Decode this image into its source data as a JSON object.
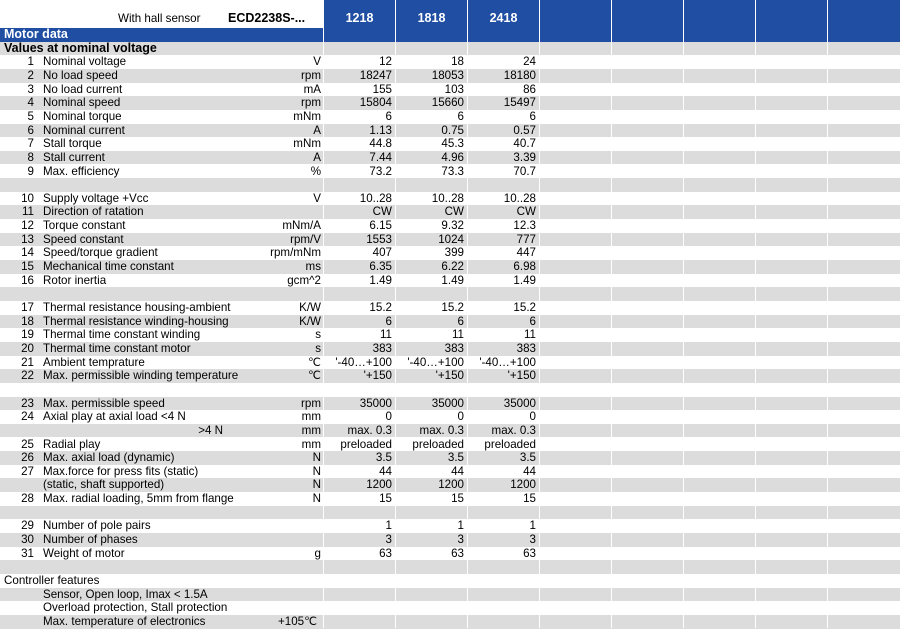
{
  "header": {
    "hall_label": "With hall sensor",
    "model_label": "ECD2238S-...",
    "columns": [
      "1218",
      "1818",
      "2418"
    ],
    "color": "#1f4ea3"
  },
  "motor_data_title": "Motor data",
  "nominal_title": "Values at nominal voltage",
  "rows": [
    {
      "num": "1",
      "desc": "Nominal voltage",
      "unit": "V",
      "v": [
        "12",
        "18",
        "24"
      ]
    },
    {
      "num": "2",
      "desc": "No load speed",
      "unit": "rpm",
      "v": [
        "18247",
        "18053",
        "18180"
      ]
    },
    {
      "num": "3",
      "desc": "No load current",
      "unit": "mA",
      "v": [
        "155",
        "103",
        "86"
      ]
    },
    {
      "num": "4",
      "desc": "Nominal speed",
      "unit": "rpm",
      "v": [
        "15804",
        "15660",
        "15497"
      ]
    },
    {
      "num": "5",
      "desc": "Nominal torque",
      "unit": "mNm",
      "v": [
        "6",
        "6",
        "6"
      ]
    },
    {
      "num": "6",
      "desc": "Nominal current",
      "unit": "A",
      "v": [
        "1.13",
        "0.75",
        "0.57"
      ]
    },
    {
      "num": "7",
      "desc": "Stall torque",
      "unit": "mNm",
      "v": [
        "44.8",
        "45.3",
        "40.7"
      ]
    },
    {
      "num": "8",
      "desc": "Stall current",
      "unit": "A",
      "v": [
        "7.44",
        "4.96",
        "3.39"
      ]
    },
    {
      "num": "9",
      "desc": "Max. efficiency",
      "unit": "%",
      "v": [
        "73.2",
        "73.3",
        "70.7"
      ]
    },
    {
      "blank": true
    },
    {
      "num": "10",
      "desc": "Supply voltage +Vcc",
      "unit": "V",
      "v": [
        "10..28",
        "10..28",
        "10..28"
      ]
    },
    {
      "num": "11",
      "desc": "Direction of ratation",
      "unit": "",
      "v": [
        "CW",
        "CW",
        "CW"
      ]
    },
    {
      "num": "12",
      "desc": "Torque constant",
      "unit": "mNm/A",
      "v": [
        "6.15",
        "9.32",
        "12.3"
      ]
    },
    {
      "num": "13",
      "desc": "Speed constant",
      "unit": "rpm/V",
      "v": [
        "1553",
        "1024",
        "777"
      ]
    },
    {
      "num": "14",
      "desc": "Speed/torque gradient",
      "unit": "rpm/mNm",
      "v": [
        "407",
        "399",
        "447"
      ]
    },
    {
      "num": "15",
      "desc": "Mechanical time constant",
      "unit": "ms",
      "v": [
        "6.35",
        "6.22",
        "6.98"
      ]
    },
    {
      "num": "16",
      "desc": "Rotor inertia",
      "unit": "gcm^2",
      "v": [
        "1.49",
        "1.49",
        "1.49"
      ]
    },
    {
      "blank": true
    },
    {
      "num": "17",
      "desc": "Thermal resistance housing-ambient",
      "unit": "K/W",
      "v": [
        "15.2",
        "15.2",
        "15.2"
      ]
    },
    {
      "num": "18",
      "desc": "Thermal resistance winding-housing",
      "unit": "K/W",
      "v": [
        "6",
        "6",
        "6"
      ]
    },
    {
      "num": "19",
      "desc": "Thermal time constant winding",
      "unit": "s",
      "v": [
        "11",
        "11",
        "11"
      ]
    },
    {
      "num": "20",
      "desc": "Thermal time constant motor",
      "unit": "s",
      "v": [
        "383",
        "383",
        "383"
      ]
    },
    {
      "num": "21",
      "desc": "Ambient temprature",
      "unit": "℃",
      "v": [
        "'-40…+100",
        "'-40…+100",
        "'-40…+100"
      ]
    },
    {
      "num": "22",
      "desc": "Max. permissible winding temperature",
      "unit": "℃",
      "v": [
        "'+150",
        "'+150",
        "'+150"
      ]
    },
    {
      "blank": true
    },
    {
      "num": "23",
      "desc": "Max. permissible speed",
      "unit": "rpm",
      "v": [
        "35000",
        "35000",
        "35000"
      ]
    },
    {
      "num": "24",
      "desc": "Axial play at axial load <4 N",
      "unit": "mm",
      "v": [
        "0",
        "0",
        "0"
      ]
    },
    {
      "num": "",
      "desc": ">4 N",
      "indent": true,
      "unit": "mm",
      "v": [
        "max. 0.3",
        "max. 0.3",
        "max. 0.3"
      ]
    },
    {
      "num": "25",
      "desc": "Radial play",
      "unit": "mm",
      "v": [
        "preloaded",
        "preloaded",
        "preloaded"
      ]
    },
    {
      "num": "26",
      "desc": "Max. axial load (dynamic)",
      "unit": "N",
      "v": [
        "3.5",
        "3.5",
        "3.5"
      ]
    },
    {
      "num": "27",
      "desc": "Max.force for press fits (static)",
      "unit": "N",
      "v": [
        "44",
        "44",
        "44"
      ]
    },
    {
      "num": "",
      "desc": "(static, shaft supported)",
      "unit": "N",
      "v": [
        "1200",
        "1200",
        "1200"
      ]
    },
    {
      "num": "28",
      "desc": "Max. radial loading, 5mm from flange",
      "unit": "N",
      "v": [
        "15",
        "15",
        "15"
      ]
    },
    {
      "blank": true
    },
    {
      "num": "29",
      "desc": "Number of pole pairs",
      "unit": "",
      "v": [
        "1",
        "1",
        "1"
      ]
    },
    {
      "num": "30",
      "desc": "Number of phases",
      "unit": "",
      "v": [
        "3",
        "3",
        "3"
      ]
    },
    {
      "num": "31",
      "desc": "Weight of motor",
      "unit": "g",
      "v": [
        "63",
        "63",
        "63"
      ]
    },
    {
      "blank": true
    }
  ],
  "controller": {
    "title": "Controller features",
    "items": [
      {
        "text": "Sensor, Open loop, Imax < 1.5A",
        "value": ""
      },
      {
        "text": "Overload protection, Stall protection",
        "value": ""
      },
      {
        "text": "Max. temperature of electronics",
        "value": "+105℃"
      }
    ]
  }
}
